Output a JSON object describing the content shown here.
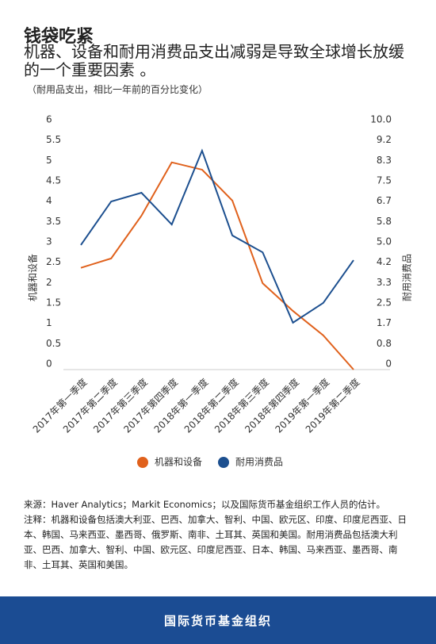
{
  "title": "钱袋吃紧",
  "subtitle": "机器、设备和耐用消费品支出减弱是导致全球增长放缓的一个重要因素 。",
  "note": "（耐用品支出，相比一年前的百分比变化）",
  "chart_data": {
    "type": "line",
    "categories": [
      "2017年第一季度",
      "2017年第二季度",
      "2017年第三季度",
      "2017年第四季度",
      "2018年第一季度",
      "2018年第二季度",
      "2018年第三季度",
      "2018年第四季度",
      "2019年第一季度",
      "2019年第二季度"
    ],
    "series": [
      {
        "name": "机器和设备",
        "color": "#e0611c",
        "values": [
          2.5,
          2.73,
          3.78,
          5.09,
          4.91,
          4.15,
          2.12,
          1.44,
          0.84,
          0
        ]
      },
      {
        "name": "耐用消费品",
        "color": "#1c4f8f",
        "axis": "y2",
        "values": [
          5.1,
          6.88,
          7.24,
          5.94,
          8.96,
          5.49,
          4.8,
          1.92,
          2.73,
          4.48
        ]
      }
    ],
    "y_label": "机器和设备",
    "y2_label": "耐用消费品",
    "ylim": [
      0,
      6
    ],
    "yticks": [
      0,
      0.5,
      1,
      1.5,
      2,
      2.5,
      3,
      3.5,
      4,
      4.5,
      5,
      5.5,
      6
    ],
    "y2lim": [
      0,
      10
    ],
    "y2ticks": [
      0,
      {
        "value": 0.8333,
        "label": "0.8"
      },
      {
        "value": 1.6667,
        "label": "1.7"
      },
      2.5,
      {
        "value": 3.3333,
        "label": "3.3"
      },
      {
        "value": 4.1667,
        "label": "4.2"
      },
      {
        "value": 5,
        "label": "5.0"
      },
      {
        "value": 5.8333,
        "label": "5.8"
      },
      {
        "value": 6.6667,
        "label": "6.7"
      },
      7.5,
      {
        "value": 8.3333,
        "label": "8.3"
      },
      {
        "value": 9.1667,
        "label": "9.2"
      },
      {
        "value": 10,
        "label": "10.0"
      }
    ],
    "legend": "bottom"
  },
  "source": "来源：Haver Analytics；Markit Economics；以及国际货币基金组织工作人员的估计。",
  "footnote": "注释：机器和设备包括澳大利亚、巴西、加拿大、智利、中国、欧元区、印度、印度尼西亚、日本、韩国、马来西亚、墨西哥、俄罗斯、南非、土耳其、英国和美国。耐用消费品包括澳大利亚、巴西、加拿大、智利、中国、欧元区、印度尼西亚、日本、韩国、马来西亚、墨西哥、南非、土耳其、英国和美国。",
  "footer": "国际货币基金组织"
}
